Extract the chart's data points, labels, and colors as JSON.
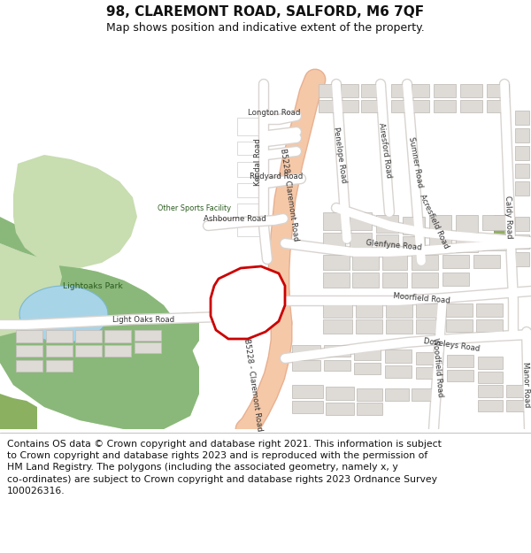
{
  "title": "98, CLAREMONT ROAD, SALFORD, M6 7QF",
  "subtitle": "Map shows position and indicative extent of the property.",
  "footer_line1": "Contains OS data © Crown copyright and database right 2021. This information is subject",
  "footer_line2": "to Crown copyright and database rights 2023 and is reproduced with the permission of",
  "footer_line3": "HM Land Registry. The polygons (including the associated geometry, namely x, y",
  "footer_line4": "co-ordinates) are subject to Crown copyright and database rights 2023 Ordnance Survey",
  "footer_line5": "100026316.",
  "map_bg": "#f2ede8",
  "park_light": "#c8ddb0",
  "park_dark": "#8ab87a",
  "water": "#a8d4e8",
  "main_road": "#f5c8a8",
  "main_road_edge": "#e8b090",
  "road_white": "#ffffff",
  "road_edge": "#d8d4d0",
  "building": "#dedad6",
  "building_edge": "#c4c0bc",
  "plot_fill": "#ffffff",
  "plot_edge": "#cc0000",
  "green_patch": "#8ab060",
  "title_fs": 11,
  "sub_fs": 9,
  "foot_fs": 7.8,
  "lbl_fs": 6.5,
  "road_lbl_fs": 6.2
}
